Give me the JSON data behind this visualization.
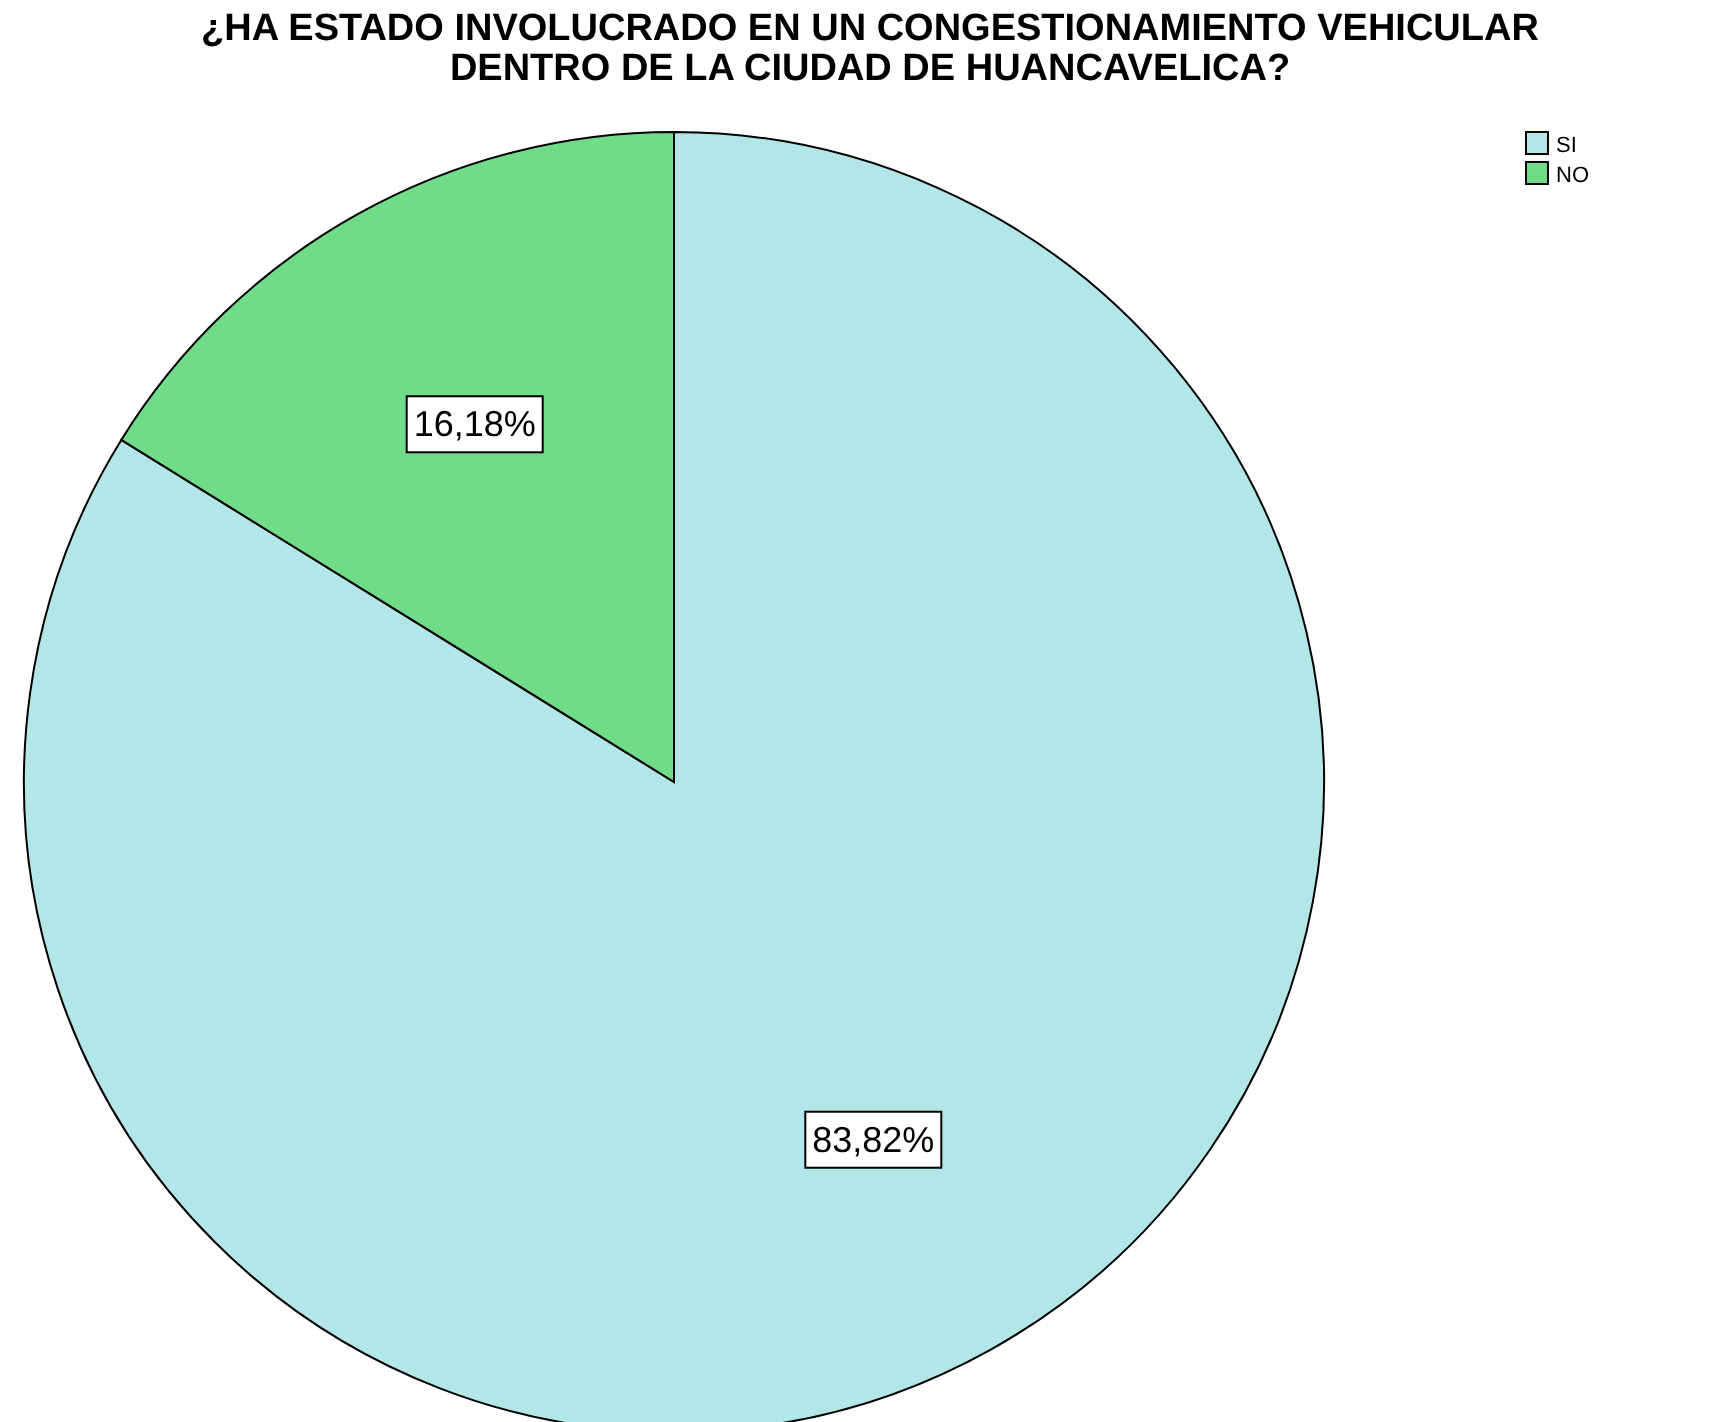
{
  "chart_data": {
    "type": "pie",
    "title": "¿HA ESTADO INVOLUCRADO EN UN CONGESTIONAMIENTO VEHICULAR DENTRO DE LA CIUDAD DE HUANCAVELICA?",
    "categories": [
      "SI",
      "NO"
    ],
    "values": [
      83.82,
      16.18
    ],
    "value_labels": [
      "83,82%",
      "16,18%"
    ],
    "colors": [
      "#b3e6e6",
      "#70dc88"
    ],
    "legend": "top right"
  }
}
